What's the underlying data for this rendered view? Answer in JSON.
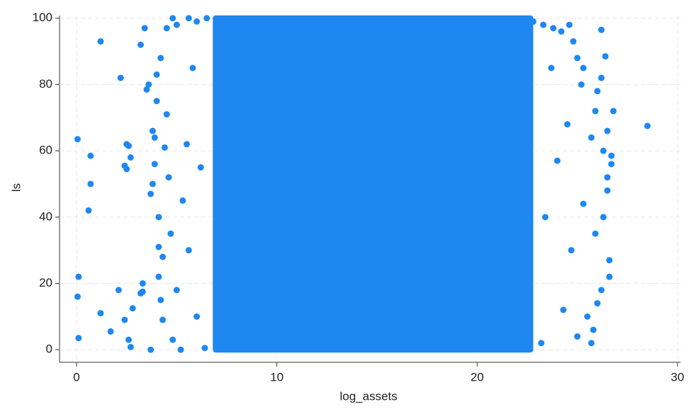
{
  "chart_data": {
    "type": "scatter",
    "x_label": "log_assets",
    "y_label": "ls",
    "color": "#1e88f0",
    "grid": true,
    "xlim": [
      -0.85,
      30.15
    ],
    "ylim": [
      -3.8,
      100.8
    ],
    "xticks": [
      0,
      10,
      20,
      30
    ],
    "yticks": [
      0,
      20,
      40,
      60,
      80,
      100
    ],
    "dense_region": {
      "x": [
        6.8,
        22.8
      ],
      "y": [
        0,
        100
      ]
    },
    "x": [
      0.05,
      0.1,
      0.05,
      0.1,
      0.7,
      0.7,
      0.6,
      1.2,
      1.2,
      1.7,
      2.1,
      2.2,
      2.4,
      2.5,
      2.5,
      2.6,
      2.7,
      2.4,
      2.6,
      2.7,
      2.8,
      3.2,
      3.3,
      3.3,
      3.2,
      3.4,
      3.5,
      3.6,
      3.7,
      3.7,
      3.8,
      3.8,
      3.9,
      3.9,
      4.0,
      4.0,
      4.1,
      4.1,
      4.1,
      4.2,
      4.2,
      4.3,
      4.3,
      4.4,
      4.5,
      4.5,
      4.6,
      4.7,
      4.8,
      4.8,
      5.0,
      5.0,
      5.2,
      5.3,
      5.5,
      5.6,
      5.8,
      6.0,
      6.2,
      6.4,
      5.6,
      6.0,
      6.5,
      22.8,
      23.3,
      23.8,
      24.2,
      24.6,
      25.0,
      25.2,
      25.3,
      25.7,
      25.8,
      25.9,
      26.0,
      26.2,
      26.2,
      26.3,
      26.3,
      26.4,
      26.5,
      26.5,
      26.6,
      26.6,
      26.7,
      26.7,
      26.8,
      26.5,
      26.2,
      26.0,
      25.9,
      25.7,
      25.5,
      25.3,
      25.0,
      24.8,
      24.7,
      24.5,
      24.3,
      24.0,
      23.7,
      23.4,
      23.2,
      28.5
    ],
    "y": [
      63.5,
      22,
      16,
      3.5,
      58.5,
      50,
      42,
      93,
      11,
      5.5,
      18,
      82,
      55.5,
      62,
      54.5,
      61.5,
      58,
      9,
      3,
      0.8,
      12.5,
      92,
      20,
      17.5,
      17,
      97,
      78.5,
      80,
      0,
      47,
      66,
      50,
      56,
      64,
      83,
      75,
      40,
      31,
      22,
      88,
      15,
      28,
      9,
      61,
      97,
      71,
      52,
      35,
      100,
      3,
      98,
      18,
      0,
      45,
      62,
      30,
      85,
      10,
      55,
      0.5,
      100,
      99,
      100,
      99,
      98,
      97,
      96,
      98,
      88,
      80,
      85,
      2,
      6,
      72,
      78,
      96.5,
      82,
      60,
      40,
      88.5,
      66,
      48,
      22,
      27,
      56,
      58.5,
      72,
      52,
      18,
      14,
      35,
      64,
      10,
      44,
      4,
      93,
      30,
      68,
      12,
      57,
      85,
      40,
      2,
      67.5
    ]
  }
}
